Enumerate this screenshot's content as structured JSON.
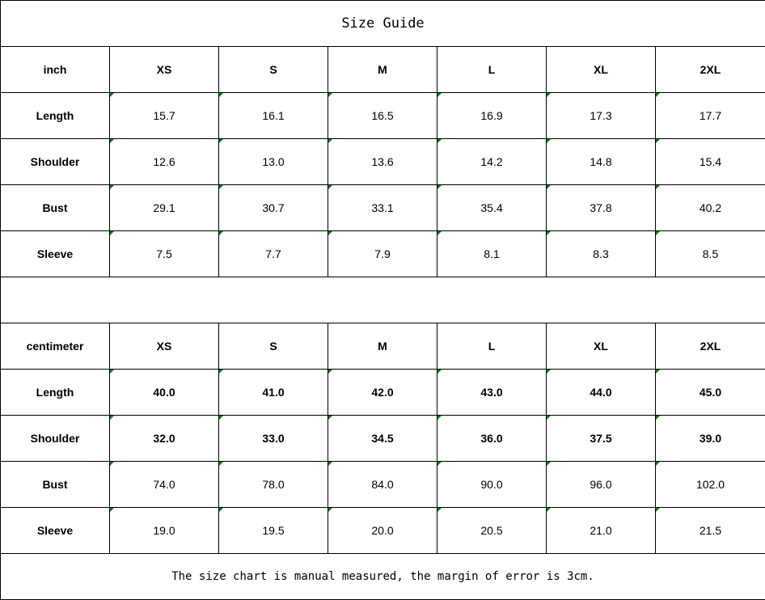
{
  "title": "Size Guide",
  "sizes": [
    "XS",
    "S",
    "M",
    "L",
    "XL",
    "2XL"
  ],
  "inch": {
    "unit_label": "inch",
    "rows": [
      {
        "label": "Length",
        "values": [
          "15.7",
          "16.1",
          "16.5",
          "16.9",
          "17.3",
          "17.7"
        ],
        "bold": false
      },
      {
        "label": "Shoulder",
        "values": [
          "12.6",
          "13.0",
          "13.6",
          "14.2",
          "14.8",
          "15.4"
        ],
        "bold": false
      },
      {
        "label": "Bust",
        "values": [
          "29.1",
          "30.7",
          "33.1",
          "35.4",
          "37.8",
          "40.2"
        ],
        "bold": false
      },
      {
        "label": "Sleeve",
        "values": [
          "7.5",
          "7.7",
          "7.9",
          "8.1",
          "8.3",
          "8.5"
        ],
        "bold": false
      }
    ]
  },
  "centimeter": {
    "unit_label": "centimeter",
    "rows": [
      {
        "label": "Length",
        "values": [
          "40.0",
          "41.0",
          "42.0",
          "43.0",
          "44.0",
          "45.0"
        ],
        "bold": true
      },
      {
        "label": "Shoulder",
        "values": [
          "32.0",
          "33.0",
          "34.5",
          "36.0",
          "37.5",
          "39.0"
        ],
        "bold": true
      },
      {
        "label": "Bust",
        "values": [
          "74.0",
          "78.0",
          "84.0",
          "90.0",
          "96.0",
          "102.0"
        ],
        "bold": false
      },
      {
        "label": "Sleeve",
        "values": [
          "19.0",
          "19.5",
          "20.0",
          "20.5",
          "21.0",
          "21.5"
        ],
        "bold": false
      }
    ]
  },
  "note": "The size chart is manual measured, the margin of error is 3cm.",
  "colors": {
    "marker": "#0a7a0a",
    "border": "#000000"
  }
}
